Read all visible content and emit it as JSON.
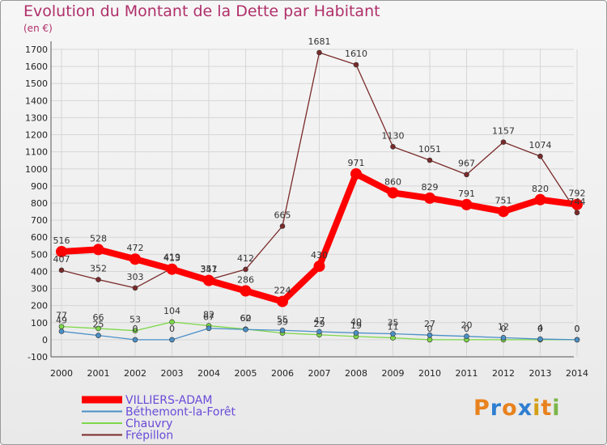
{
  "title": "Evolution du Montant de la Dette par Habitant",
  "unit": "(en €)",
  "logo": "Proxiti",
  "chart_data": {
    "type": "line",
    "title": "Evolution du Montant de la Dette par Habitant",
    "ylabel": "(en €)",
    "x": [
      2000,
      2001,
      2002,
      2003,
      2004,
      2005,
      2006,
      2007,
      2008,
      2009,
      2010,
      2011,
      2012,
      2013,
      2014
    ],
    "ylim": [
      -100,
      1700
    ],
    "yticks": [
      -100,
      0,
      100,
      200,
      300,
      400,
      500,
      600,
      700,
      800,
      900,
      1000,
      1100,
      1200,
      1300,
      1400,
      1500,
      1600,
      1700
    ],
    "grid": true,
    "legend_position": "bottom-left",
    "series": [
      {
        "name": "Chauvry",
        "color": "#7ed84a",
        "values": [
          77,
          66,
          53,
          104,
          82,
          62,
          39,
          29,
          19,
          11,
          0,
          0,
          0,
          0,
          0
        ]
      },
      {
        "name": "Béthemont-la-Forêt",
        "color": "#4a90c8",
        "values": [
          49,
          25,
          0,
          0,
          67,
          60,
          55,
          47,
          40,
          35,
          27,
          20,
          12,
          4,
          0
        ]
      },
      {
        "name": "Frépillon",
        "color": "#7a2a2a",
        "values": [
          407,
          352,
          303,
          419,
          351,
          412,
          665,
          1681,
          1610,
          1130,
          1051,
          967,
          1157,
          1074,
          744
        ]
      },
      {
        "name": "VILLIERS-ADAM",
        "color": "#ff0000",
        "values": [
          516,
          528,
          472,
          413,
          347,
          286,
          224,
          430,
          971,
          860,
          829,
          791,
          751,
          820,
          792
        ]
      }
    ]
  }
}
